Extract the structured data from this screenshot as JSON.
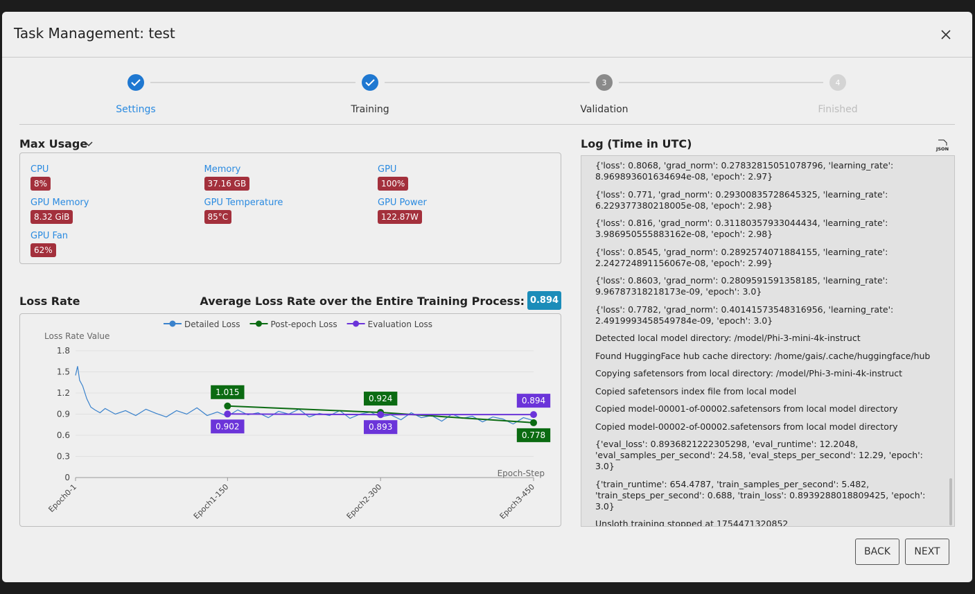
{
  "header": {
    "title": "Task Management: test"
  },
  "stepper": {
    "steps": [
      {
        "label": "Settings"
      },
      {
        "label": "Training"
      },
      {
        "label": "Validation",
        "number": "3"
      },
      {
        "label": "Finished",
        "number": "4"
      }
    ]
  },
  "usage": {
    "title": "Max Usage",
    "metrics": [
      {
        "name": "CPU",
        "value": "8%"
      },
      {
        "name": "Memory",
        "value": "37.16 GB"
      },
      {
        "name": "GPU",
        "value": "100%"
      },
      {
        "name": "GPU Memory",
        "value": "8.32 GiB"
      },
      {
        "name": "GPU Temperature",
        "value": "85°C"
      },
      {
        "name": "GPU Power",
        "value": "122.87W"
      },
      {
        "name": "GPU Fan",
        "value": "62%"
      }
    ]
  },
  "loss": {
    "title": "Loss Rate",
    "average_label": "Average Loss Rate over the Entire Training Process:",
    "average": "0.894"
  },
  "chart_data": {
    "type": "line",
    "y_label": "Loss Rate Value",
    "x_label": "Epoch-Step",
    "xlim": [
      1,
      450
    ],
    "xticks": [
      {
        "value": 1,
        "label": "Epoch0-1"
      },
      {
        "value": 150,
        "label": "Epoch1-150"
      },
      {
        "value": 300,
        "label": "Epoch2-300"
      },
      {
        "value": 450,
        "label": "Epoch3-450"
      }
    ],
    "ylim": [
      0,
      1.8
    ],
    "yticks": [
      0,
      0.3,
      0.6,
      0.9,
      1.2,
      1.5,
      1.8
    ],
    "grid": true,
    "series": [
      {
        "name": "Detailed Loss",
        "color": "#3a82cc",
        "x": [
          1,
          3,
          5,
          8,
          12,
          16,
          20,
          25,
          30,
          40,
          50,
          60,
          70,
          80,
          90,
          100,
          110,
          120,
          130,
          140,
          150,
          160,
          170,
          180,
          190,
          200,
          210,
          220,
          230,
          240,
          250,
          260,
          270,
          280,
          290,
          300,
          310,
          320,
          330,
          340,
          350,
          360,
          370,
          380,
          390,
          400,
          410,
          420,
          430,
          440,
          450
        ],
        "values": [
          1.45,
          1.58,
          1.38,
          1.3,
          1.12,
          1.0,
          0.96,
          0.92,
          0.98,
          0.9,
          0.95,
          0.88,
          0.97,
          0.91,
          0.86,
          0.95,
          0.9,
          0.99,
          0.88,
          0.93,
          0.87,
          0.96,
          0.89,
          0.92,
          0.85,
          0.94,
          0.9,
          0.97,
          0.86,
          0.91,
          0.88,
          0.95,
          0.84,
          0.9,
          0.93,
          0.86,
          0.89,
          0.82,
          0.92,
          0.85,
          0.88,
          0.8,
          0.9,
          0.84,
          0.87,
          0.79,
          0.86,
          0.83,
          0.76,
          0.85,
          0.81
        ]
      },
      {
        "name": "Post-epoch Loss",
        "color": "#0b6b12",
        "x": [
          150,
          300,
          450
        ],
        "values": [
          1.015,
          0.924,
          0.778
        ]
      },
      {
        "name": "Evaluation Loss",
        "color": "#6b34d9",
        "x": [
          150,
          300,
          450
        ],
        "values": [
          0.902,
          0.893,
          0.894
        ]
      }
    ]
  },
  "log": {
    "title": "Log (Time in UTC)",
    "export_icon": "JSON",
    "entries": [
      "{'loss': 0.8068, 'grad_norm': 0.27832815051078796, 'learning_rate': 8.969893601634694e-08, 'epoch': 2.97}",
      "{'loss': 0.771, 'grad_norm': 0.29300835728645325, 'learning_rate': 6.229377380218005e-08, 'epoch': 2.98}",
      "{'loss': 0.816, 'grad_norm': 0.31180357933044434, 'learning_rate': 3.986950555883162e-08, 'epoch': 2.98}",
      "{'loss': 0.8545, 'grad_norm': 0.2892574071884155, 'learning_rate': 2.242724891156067e-08, 'epoch': 2.99}",
      "{'loss': 0.8603, 'grad_norm': 0.2809591591358185, 'learning_rate': 9.96787318218173e-09, 'epoch': 3.0}",
      "{'loss': 0.7782, 'grad_norm': 0.40141573548316956, 'learning_rate': 2.4919993458549784e-09, 'epoch': 3.0}",
      "Detected local model directory: /model/Phi-3-mini-4k-instruct",
      "Found HuggingFace hub cache directory: /home/gais/.cache/huggingface/hub",
      "Copying safetensors from local directory: /model/Phi-3-mini-4k-instruct",
      "Copied safetensors index file from local model",
      "Copied model-00001-of-00002.safetensors from local model directory",
      "Copied model-00002-of-00002.safetensors from local model directory",
      "{'eval_loss': 0.8936821222305298, 'eval_runtime': 12.2048, 'eval_samples_per_second': 24.58, 'eval_steps_per_second': 12.29, 'epoch': 3.0}",
      "{'train_runtime': 654.4787, 'train_samples_per_second': 5.482, 'train_steps_per_second': 0.688, 'train_loss': 0.8939288018809425, 'epoch': 3.0}",
      "Unsloth training stopped at 1754471320852"
    ]
  },
  "actions": {
    "back": "BACK",
    "next": "NEXT"
  }
}
